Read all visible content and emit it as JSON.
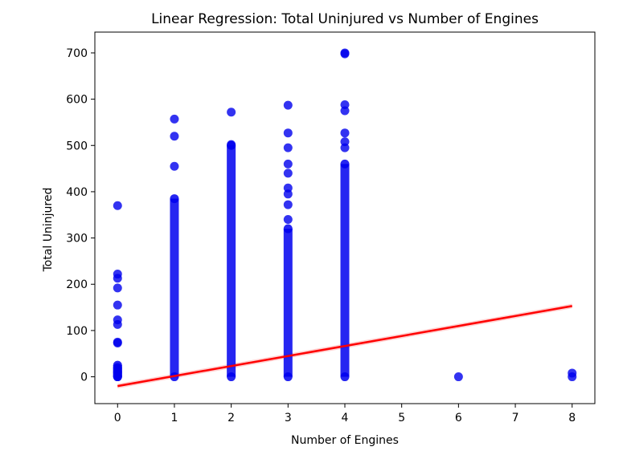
{
  "chart_data": {
    "type": "scatter",
    "title": "Linear Regression: Total Uninjured vs Number of Engines",
    "xlabel": "Number of Engines",
    "ylabel": "Total Uninjured",
    "xlim": [
      -0.4,
      8.4
    ],
    "ylim": [
      -58,
      745
    ],
    "xticks": [
      0,
      1,
      2,
      3,
      4,
      5,
      6,
      7,
      8
    ],
    "yticks": [
      0,
      100,
      200,
      300,
      400,
      500,
      600,
      700
    ],
    "grid": false,
    "point_color": "#0000ee",
    "line_color": "#ff0000",
    "band_color": "#ffb3b3",
    "series": [
      {
        "x": 0,
        "dense_range": [
          0,
          25
        ],
        "points": [
          0,
          2,
          5,
          8,
          10,
          12,
          15,
          18,
          20,
          73,
          75,
          113,
          123,
          155,
          192,
          213,
          222,
          370
        ]
      },
      {
        "x": 1,
        "dense_range": [
          0,
          385
        ],
        "points": [
          455,
          520,
          557
        ]
      },
      {
        "x": 2,
        "dense_range": [
          0,
          500
        ],
        "points": [
          502,
          572
        ]
      },
      {
        "x": 3,
        "dense_range": [
          0,
          320
        ],
        "points": [
          340,
          372,
          395,
          408,
          440,
          460,
          495,
          527,
          587
        ]
      },
      {
        "x": 4,
        "dense_range": [
          0,
          460
        ],
        "points": [
          495,
          508,
          527,
          575,
          588,
          698,
          700
        ]
      },
      {
        "x": 6,
        "dense_range": null,
        "points": [
          0
        ]
      },
      {
        "x": 8,
        "dense_range": null,
        "points": [
          0,
          8
        ]
      }
    ],
    "regression": {
      "x": [
        0,
        8
      ],
      "y": [
        -20,
        153
      ],
      "ci_halfwidth_at_ends": 5
    }
  }
}
